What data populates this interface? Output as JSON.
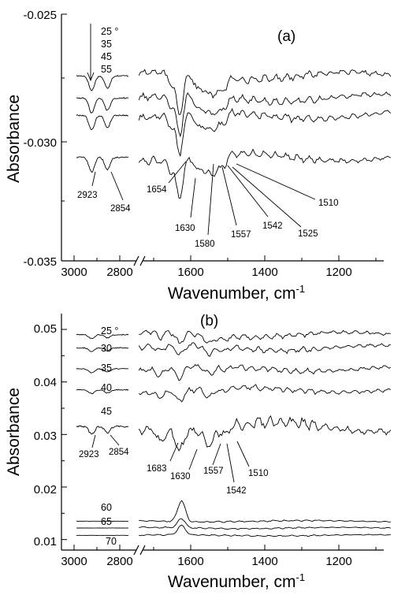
{
  "chart_data": [
    {
      "type": "line",
      "panel_label": "(a)",
      "xlabel": "Wavenumber, cm",
      "xlabel_sup": "-1",
      "ylabel": "Absorbance",
      "xlim": [
        1060,
        3000
      ],
      "axis_break_between": [
        2750,
        1750
      ],
      "ylim": [
        -0.035,
        -0.025
      ],
      "x_tick_labels": [
        "3000",
        "2800",
        "1600",
        "1400",
        "1200"
      ],
      "y_tick_labels": [
        "-0.025",
        "-0.030",
        "-0.035"
      ],
      "y_ticks": [
        -0.025,
        -0.03,
        -0.035
      ],
      "legend_entries": [
        "25 °",
        "35",
        "45",
        "55"
      ],
      "series": [
        {
          "name": "25 °",
          "offset": -0.0275
        },
        {
          "name": "35",
          "offset": -0.0284
        },
        {
          "name": "45",
          "offset": -0.0291
        },
        {
          "name": "55",
          "offset": -0.0308
        }
      ],
      "peaks": [
        {
          "wavenumber": 2923,
          "depth": -0.0006
        },
        {
          "wavenumber": 2854,
          "depth": -0.0005
        },
        {
          "wavenumber": 1654,
          "depth": -0.0004
        },
        {
          "wavenumber": 1630,
          "depth": -0.0016
        },
        {
          "wavenumber": 1580,
          "depth": -0.0006
        },
        {
          "wavenumber": 1557,
          "depth": -0.0005
        },
        {
          "wavenumber": 1542,
          "depth": -0.00055
        },
        {
          "wavenumber": 1525,
          "depth": -0.0004
        },
        {
          "wavenumber": 1510,
          "depth": -0.00035
        }
      ],
      "annotations": [
        {
          "text": "2923",
          "x": 2923
        },
        {
          "text": "2854",
          "x": 2854
        },
        {
          "text": "1654",
          "x": 1654
        },
        {
          "text": "1630",
          "x": 1630
        },
        {
          "text": "1580",
          "x": 1580
        },
        {
          "text": "1557",
          "x": 1557
        },
        {
          "text": "1542",
          "x": 1542
        },
        {
          "text": "1525",
          "x": 1525
        },
        {
          "text": "1510",
          "x": 1510
        }
      ]
    },
    {
      "type": "line",
      "panel_label": "(b)",
      "xlabel": "Wavenumber, cm",
      "xlabel_sup": "-1",
      "ylabel": "Absorbance",
      "xlim": [
        1060,
        3000
      ],
      "axis_break_between": [
        2750,
        1750
      ],
      "ylim": [
        0.008,
        0.053
      ],
      "x_tick_labels": [
        "3000",
        "2800",
        "1600",
        "1400",
        "1200"
      ],
      "y_tick_labels": [
        "0.05",
        "0.04",
        "0.03",
        "0.02",
        "0.01"
      ],
      "y_ticks": [
        0.05,
        0.04,
        0.03,
        0.02,
        0.01
      ],
      "legend_entries": [
        "25 °",
        "30",
        "35",
        "40",
        "45",
        "60",
        "65",
        "70"
      ],
      "series": [
        {
          "name": "25 °",
          "offset": 0.049
        },
        {
          "name": "30",
          "offset": 0.0465
        },
        {
          "name": "35",
          "offset": 0.0425
        },
        {
          "name": "40",
          "offset": 0.0385
        },
        {
          "name": "45",
          "offset": 0.0315
        },
        {
          "name": "60",
          "offset": 0.0135
        },
        {
          "name": "65",
          "offset": 0.0122
        },
        {
          "name": "70",
          "offset": 0.0108
        }
      ],
      "peaks": [
        {
          "wavenumber": 2923,
          "depth": -0.0015
        },
        {
          "wavenumber": 2854,
          "depth": -0.0012
        },
        {
          "wavenumber": 1683,
          "depth": -0.002
        },
        {
          "wavenumber": 1630,
          "depth": -0.004
        },
        {
          "wavenumber": 1557,
          "depth": -0.002
        },
        {
          "wavenumber": 1542,
          "depth": -0.002
        },
        {
          "wavenumber": 1510,
          "depth": -0.0015
        }
      ],
      "high_temp_peak": {
        "wavenumber": 1625,
        "height": 0.004
      },
      "annotations": [
        {
          "text": "2923",
          "x": 2923
        },
        {
          "text": "2854",
          "x": 2854
        },
        {
          "text": "1683",
          "x": 1683
        },
        {
          "text": "1630",
          "x": 1630
        },
        {
          "text": "1557",
          "x": 1557
        },
        {
          "text": "1542",
          "x": 1542
        },
        {
          "text": "1510",
          "x": 1510
        }
      ]
    }
  ]
}
